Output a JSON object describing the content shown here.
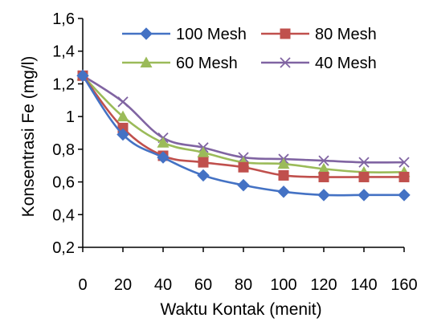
{
  "chart_data": {
    "type": "line",
    "xlabel": "Waktu Kontak (menit)",
    "ylabel": "Konsentrasi  Fe (mg/l)",
    "x": [
      0,
      20,
      40,
      60,
      80,
      100,
      120,
      140,
      160
    ],
    "xlim": [
      0,
      160
    ],
    "ylim": [
      0.2,
      1.6
    ],
    "yticks": [
      "0,2",
      "0,4",
      "0,6",
      "0,8",
      "1",
      "1,2",
      "1,4",
      "1,6"
    ],
    "xticks": [
      "0",
      "20",
      "40",
      "60",
      "80",
      "100",
      "120",
      "140",
      "160"
    ],
    "grid": false,
    "legend_position": "top-right",
    "series": [
      {
        "name": "100 Mesh",
        "color": "#4472C4",
        "marker": "diamond",
        "values": [
          1.25,
          0.89,
          0.75,
          0.64,
          0.58,
          0.54,
          0.52,
          0.52,
          0.52
        ]
      },
      {
        "name": "80 Mesh",
        "color": "#C0504D",
        "marker": "square",
        "values": [
          1.25,
          0.93,
          0.76,
          0.72,
          0.69,
          0.64,
          0.63,
          0.63,
          0.63
        ]
      },
      {
        "name": "60 Mesh",
        "color": "#9BBB59",
        "marker": "triangle",
        "values": [
          1.25,
          1.0,
          0.84,
          0.78,
          0.72,
          0.71,
          0.68,
          0.66,
          0.66
        ]
      },
      {
        "name": "40 Mesh",
        "color": "#8064A2",
        "marker": "x",
        "values": [
          1.25,
          1.09,
          0.87,
          0.81,
          0.75,
          0.74,
          0.73,
          0.72,
          0.72
        ]
      }
    ]
  }
}
